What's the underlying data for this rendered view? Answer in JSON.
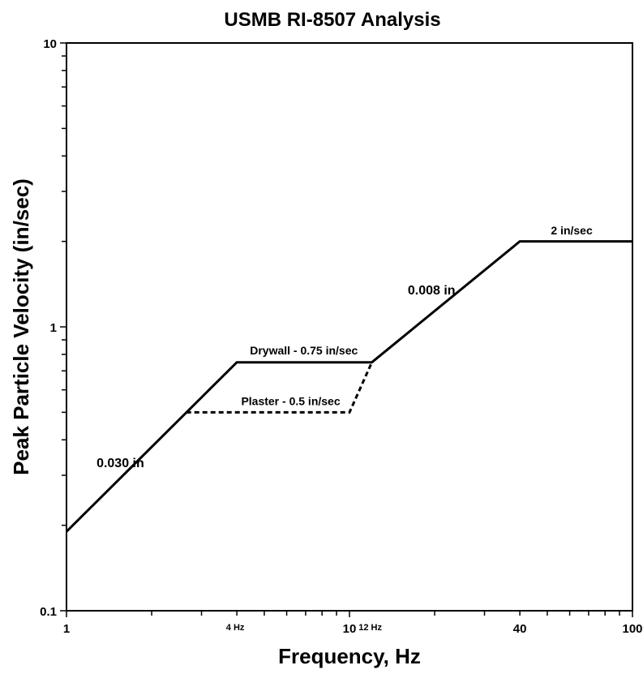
{
  "chart_data": {
    "type": "line",
    "title": "USMB RI-8507 Analysis",
    "xlabel": "Frequency, Hz",
    "ylabel": "Peak Particle Velocity (in/sec)",
    "x_scale": "log",
    "y_scale": "log",
    "xlim": [
      1,
      100
    ],
    "ylim": [
      0.1,
      10
    ],
    "x_tick_labels": [
      {
        "value": 1,
        "label": "1",
        "size": "large"
      },
      {
        "value": 4,
        "label": "4 Hz",
        "size": "small"
      },
      {
        "value": 10,
        "label": "10",
        "size": "large"
      },
      {
        "value": 12,
        "label": "12 Hz",
        "size": "small"
      },
      {
        "value": 40,
        "label": "40",
        "size": "large"
      },
      {
        "value": 100,
        "label": "100",
        "size": "large"
      }
    ],
    "y_tick_labels": [
      {
        "value": 0.1,
        "label": "0.1"
      },
      {
        "value": 1,
        "label": "1"
      },
      {
        "value": 10,
        "label": "10"
      }
    ],
    "grid": false,
    "series": [
      {
        "style": "solid",
        "points": [
          [
            1,
            0.19
          ],
          [
            4,
            0.75
          ],
          [
            12,
            0.75
          ],
          [
            40,
            2
          ],
          [
            100,
            2
          ]
        ]
      },
      {
        "style": "dashed",
        "points": [
          [
            2.65,
            0.5
          ],
          [
            10,
            0.5
          ],
          [
            12,
            0.75
          ]
        ]
      }
    ],
    "annotations": [
      {
        "text": "0.030 in",
        "x": 1.55,
        "y": 0.32,
        "size": "large"
      },
      {
        "text": "Drywall - 0.75 in/sec",
        "x": 6.9,
        "y": 0.8,
        "size": "small"
      },
      {
        "text": "Plaster - 0.5 in/sec",
        "x": 6.2,
        "y": 0.53,
        "size": "small"
      },
      {
        "text": "0.008 in",
        "x": 19.5,
        "y": 1.3,
        "size": "large"
      },
      {
        "text": "2 in/sec",
        "x": 61,
        "y": 2.12,
        "size": "small"
      }
    ]
  }
}
